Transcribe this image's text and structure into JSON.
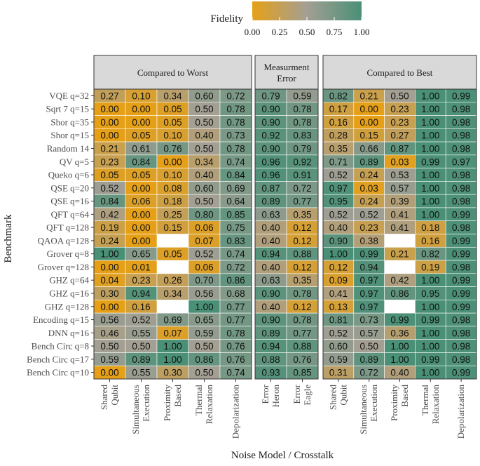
{
  "chart_data": {
    "type": "heatmap",
    "legend": {
      "title": "Fidelity",
      "ticks": [
        "0.00",
        "0.25",
        "0.50",
        "0.75",
        "1.00"
      ],
      "colors": {
        "low": "#e5a018",
        "mid": "#a39f93",
        "high": "#4a9077"
      },
      "position": "top"
    },
    "xlabel": "Noise Model / Crosstalk",
    "ylabel": "Benchmark",
    "rows": [
      "VQE q=32",
      "Sqrt 7 q=15",
      "Shor q=35",
      "Shor q=15",
      "Random 14",
      "QV q=5",
      "Queko q=6",
      "QSE q=20",
      "QSE q=16",
      "QFT q=64",
      "QFT q=128",
      "QAOA q=128",
      "Grover q=8",
      "Grover q=128",
      "GHZ q=64",
      "GHZ q=16",
      "GHZ q=128",
      "Encoding q=15",
      "DNN q=16",
      "Bench Circ q=8",
      "Bench Circ q=17",
      "Bench Circ q=10"
    ],
    "panels": [
      {
        "title": [
          "Compared to Worst"
        ],
        "columns": [
          [
            "Shared",
            "Qubit"
          ],
          [
            "Simultaneous",
            "Execution"
          ],
          [
            "Proximity",
            "Based"
          ],
          [
            "Thermal",
            "Relaxation"
          ],
          [
            "Depolarization"
          ]
        ],
        "values": [
          [
            0.27,
            0.1,
            0.34,
            0.6,
            0.72
          ],
          [
            0.0,
            0.0,
            0.05,
            0.5,
            0.78
          ],
          [
            0.0,
            0.0,
            0.05,
            0.5,
            0.78
          ],
          [
            0.0,
            0.05,
            0.1,
            0.4,
            0.73
          ],
          [
            0.21,
            0.61,
            0.76,
            0.5,
            0.78
          ],
          [
            0.23,
            0.84,
            0.0,
            0.34,
            0.74
          ],
          [
            0.05,
            0.05,
            0.1,
            0.4,
            0.84
          ],
          [
            0.52,
            0.0,
            0.08,
            0.6,
            0.69
          ],
          [
            0.84,
            0.06,
            0.18,
            0.5,
            0.64
          ],
          [
            0.42,
            0.0,
            0.25,
            0.8,
            0.85
          ],
          [
            0.19,
            0.0,
            0.15,
            0.06,
            0.75
          ],
          [
            0.24,
            0.0,
            null,
            0.07,
            0.83
          ],
          [
            1.0,
            0.65,
            0.05,
            0.52,
            0.74
          ],
          [
            0.0,
            0.01,
            null,
            0.06,
            0.72
          ],
          [
            0.04,
            0.23,
            0.26,
            0.7,
            0.86
          ],
          [
            0.3,
            0.94,
            0.34,
            0.56,
            0.68
          ],
          [
            0.0,
            0.16,
            null,
            1.0,
            0.77
          ],
          [
            0.56,
            0.52,
            0.69,
            0.65,
            0.77
          ],
          [
            0.46,
            0.55,
            0.07,
            0.59,
            0.78
          ],
          [
            0.5,
            0.5,
            1.0,
            0.5,
            0.76
          ],
          [
            0.59,
            0.89,
            1.0,
            0.86,
            0.76
          ],
          [
            0.0,
            0.55,
            0.3,
            0.5,
            0.74
          ]
        ]
      },
      {
        "title": [
          "Measurment",
          "Error"
        ],
        "columns": [
          [
            "Error",
            "Heron"
          ],
          [
            "Error",
            "Eagle"
          ]
        ],
        "values": [
          [
            0.79,
            0.59
          ],
          [
            0.9,
            0.78
          ],
          [
            0.9,
            0.78
          ],
          [
            0.92,
            0.83
          ],
          [
            0.9,
            0.79
          ],
          [
            0.96,
            0.92
          ],
          [
            0.96,
            0.91
          ],
          [
            0.87,
            0.72
          ],
          [
            0.89,
            0.77
          ],
          [
            0.63,
            0.35
          ],
          [
            0.4,
            0.12
          ],
          [
            0.4,
            0.12
          ],
          [
            0.94,
            0.88
          ],
          [
            0.4,
            0.12
          ],
          [
            0.63,
            0.35
          ],
          [
            0.9,
            0.78
          ],
          [
            0.4,
            0.12
          ],
          [
            0.9,
            0.78
          ],
          [
            0.89,
            0.77
          ],
          [
            0.94,
            0.88
          ],
          [
            0.88,
            0.76
          ],
          [
            0.93,
            0.85
          ]
        ]
      },
      {
        "title": [
          "Compared to Best"
        ],
        "columns": [
          [
            "Shared",
            "Qubit"
          ],
          [
            "Simultaneous",
            "Execution"
          ],
          [
            "Proximity",
            "Based"
          ],
          [
            "Thermal",
            "Relaxation"
          ],
          [
            "Depolarization"
          ]
        ],
        "values": [
          [
            0.82,
            0.21,
            0.5,
            1.0,
            0.99
          ],
          [
            0.17,
            0.0,
            0.23,
            1.0,
            0.98
          ],
          [
            0.16,
            0.0,
            0.23,
            1.0,
            0.98
          ],
          [
            0.28,
            0.15,
            0.27,
            1.0,
            0.98
          ],
          [
            0.35,
            0.66,
            0.87,
            1.0,
            0.98
          ],
          [
            0.71,
            0.89,
            0.03,
            0.99,
            0.97
          ],
          [
            0.52,
            0.24,
            0.53,
            1.0,
            0.98
          ],
          [
            0.97,
            0.03,
            0.57,
            1.0,
            0.98
          ],
          [
            0.95,
            0.24,
            0.39,
            1.0,
            0.98
          ],
          [
            0.52,
            0.52,
            0.41,
            1.0,
            0.99
          ],
          [
            0.4,
            0.23,
            0.41,
            0.18,
            0.98
          ],
          [
            0.9,
            0.38,
            null,
            0.16,
            0.99
          ],
          [
            1.0,
            0.99,
            0.21,
            0.82,
            0.99
          ],
          [
            0.12,
            0.94,
            null,
            0.19,
            0.98
          ],
          [
            0.09,
            0.97,
            0.42,
            1.0,
            0.99
          ],
          [
            0.41,
            0.97,
            0.86,
            0.95,
            0.99
          ],
          [
            0.13,
            0.97,
            null,
            1.0,
            0.99
          ],
          [
            0.81,
            0.73,
            0.99,
            0.99,
            0.98
          ],
          [
            0.52,
            0.57,
            0.36,
            1.0,
            0.98
          ],
          [
            0.6,
            0.5,
            1.0,
            1.0,
            0.98
          ],
          [
            0.59,
            0.89,
            1.0,
            0.99,
            0.98
          ],
          [
            0.31,
            0.72,
            0.4,
            1.0,
            0.99
          ]
        ]
      }
    ]
  }
}
